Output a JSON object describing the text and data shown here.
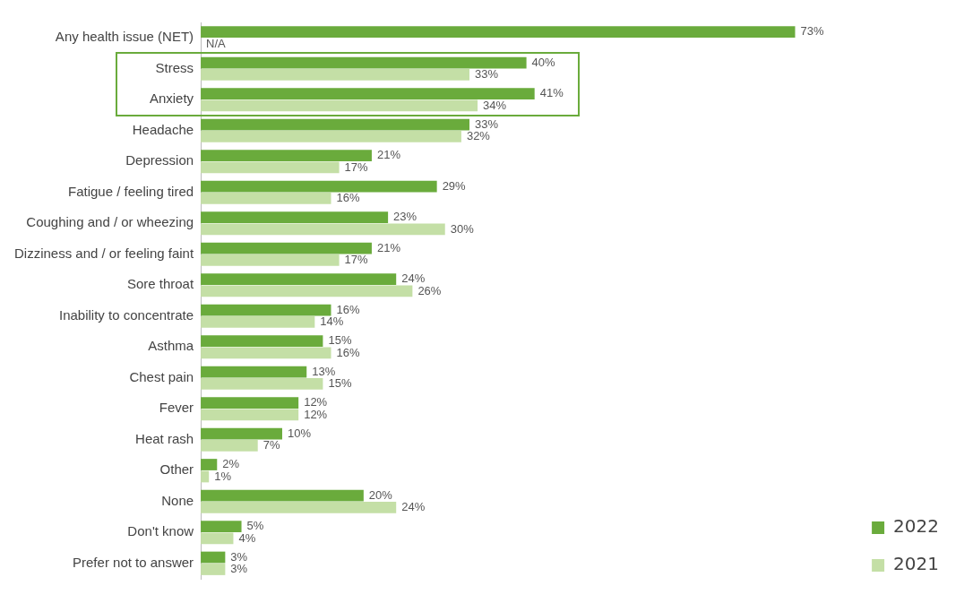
{
  "chart_data": {
    "type": "bar",
    "orientation": "horizontal",
    "categories": [
      "Any health issue (NET)",
      "Stress",
      "Anxiety",
      "Headache",
      "Depression",
      "Fatigue / feeling tired",
      "Coughing and / or wheezing",
      "Dizziness and / or feeling faint",
      "Sore throat",
      "Inability to concentrate",
      "Asthma",
      "Chest pain",
      "Fever",
      "Heat rash",
      "Other",
      "None",
      "Don't know",
      "Prefer not to answer"
    ],
    "series": [
      {
        "name": "2022",
        "color": "#6aab3c",
        "values": [
          73,
          40,
          41,
          33,
          21,
          29,
          23,
          21,
          24,
          16,
          15,
          13,
          12,
          10,
          2,
          20,
          5,
          3
        ],
        "value_labels": [
          "73%",
          "40%",
          "41%",
          "33%",
          "21%",
          "29%",
          "23%",
          "21%",
          "24%",
          "16%",
          "15%",
          "13%",
          "12%",
          "10%",
          "2%",
          "20%",
          "5%",
          "3%"
        ]
      },
      {
        "name": "2021",
        "color": "#c4dfa6",
        "values": [
          null,
          33,
          34,
          32,
          17,
          16,
          30,
          17,
          26,
          14,
          16,
          15,
          12,
          7,
          1,
          24,
          4,
          3
        ],
        "value_labels": [
          "N/A",
          "33%",
          "34%",
          "32%",
          "17%",
          "16%",
          "30%",
          "17%",
          "26%",
          "14%",
          "16%",
          "15%",
          "12%",
          "7%",
          "1%",
          "24%",
          "4%",
          "3%"
        ]
      }
    ],
    "legend": "bottom right",
    "grid": false
  }
}
